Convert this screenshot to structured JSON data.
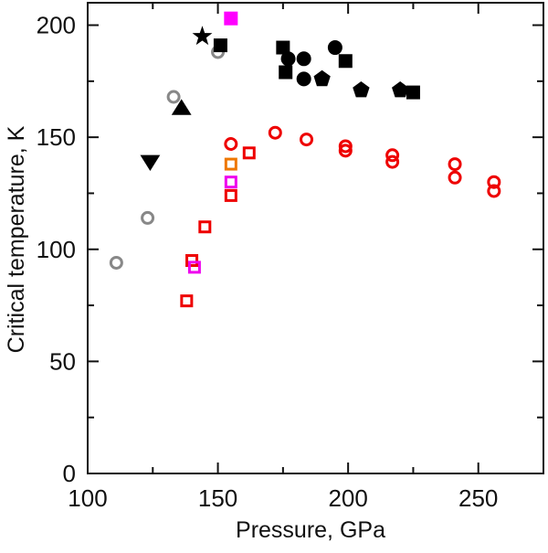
{
  "chart_data": {
    "type": "scatter",
    "title": "",
    "xlabel": "Pressure, GPa",
    "ylabel": "Critical temperature, K",
    "xlim": [
      100,
      275
    ],
    "ylim": [
      0,
      210
    ],
    "xticks": [
      100,
      150,
      200,
      250
    ],
    "yticks": [
      0,
      50,
      100,
      150,
      200
    ],
    "x_minor_step": 25,
    "y_minor_step": 25,
    "grid": false,
    "legend": "none",
    "series": [
      {
        "name": "gray-open-circles",
        "marker": "circle",
        "filled": false,
        "color": "#888888",
        "points": [
          [
            111,
            94
          ],
          [
            123,
            114
          ],
          [
            133,
            168
          ],
          [
            150,
            188
          ]
        ]
      },
      {
        "name": "black-star",
        "marker": "star",
        "filled": true,
        "color": "#000000",
        "points": [
          [
            144,
            195
          ]
        ]
      },
      {
        "name": "black-triangle-up",
        "marker": "triangle-up",
        "filled": true,
        "color": "#000000",
        "points": [
          [
            136,
            163
          ]
        ]
      },
      {
        "name": "black-triangle-down",
        "marker": "triangle-down",
        "filled": true,
        "color": "#000000",
        "points": [
          [
            124,
            139
          ]
        ]
      },
      {
        "name": "black-squares",
        "marker": "square",
        "filled": true,
        "color": "#000000",
        "points": [
          [
            151,
            191
          ],
          [
            175,
            190
          ],
          [
            176,
            179
          ],
          [
            199,
            184
          ],
          [
            225,
            170
          ]
        ]
      },
      {
        "name": "black-circles",
        "marker": "circle",
        "filled": true,
        "color": "#000000",
        "points": [
          [
            177,
            185
          ],
          [
            183,
            185
          ],
          [
            183,
            176
          ],
          [
            195,
            190
          ]
        ]
      },
      {
        "name": "black-pentagons",
        "marker": "pentagon",
        "filled": true,
        "color": "#000000",
        "points": [
          [
            190,
            176
          ],
          [
            205,
            171
          ],
          [
            220,
            171
          ]
        ]
      },
      {
        "name": "magenta-filled-square",
        "marker": "square",
        "filled": true,
        "color": "#ff00ff",
        "points": [
          [
            155,
            203
          ]
        ]
      },
      {
        "name": "red-open-circles",
        "marker": "circle",
        "filled": false,
        "color": "#ee0000",
        "points": [
          [
            155,
            147
          ],
          [
            172,
            152
          ],
          [
            184,
            149
          ],
          [
            199,
            146
          ],
          [
            199,
            144
          ],
          [
            217,
            142
          ],
          [
            217,
            139
          ],
          [
            241,
            138
          ],
          [
            241,
            132
          ],
          [
            256,
            130
          ],
          [
            256,
            126
          ]
        ]
      },
      {
        "name": "red-open-squares",
        "marker": "square",
        "filled": false,
        "color": "#ee0000",
        "points": [
          [
            138,
            77
          ],
          [
            140,
            95
          ],
          [
            145,
            110
          ],
          [
            155,
            124
          ],
          [
            162,
            143
          ]
        ]
      },
      {
        "name": "orange-open-square",
        "marker": "square",
        "filled": false,
        "color": "#ee7700",
        "points": [
          [
            155,
            138
          ]
        ]
      },
      {
        "name": "magenta-open-squares",
        "marker": "square",
        "filled": false,
        "color": "#ee00ee",
        "points": [
          [
            155,
            130
          ],
          [
            141,
            92
          ]
        ]
      }
    ]
  }
}
